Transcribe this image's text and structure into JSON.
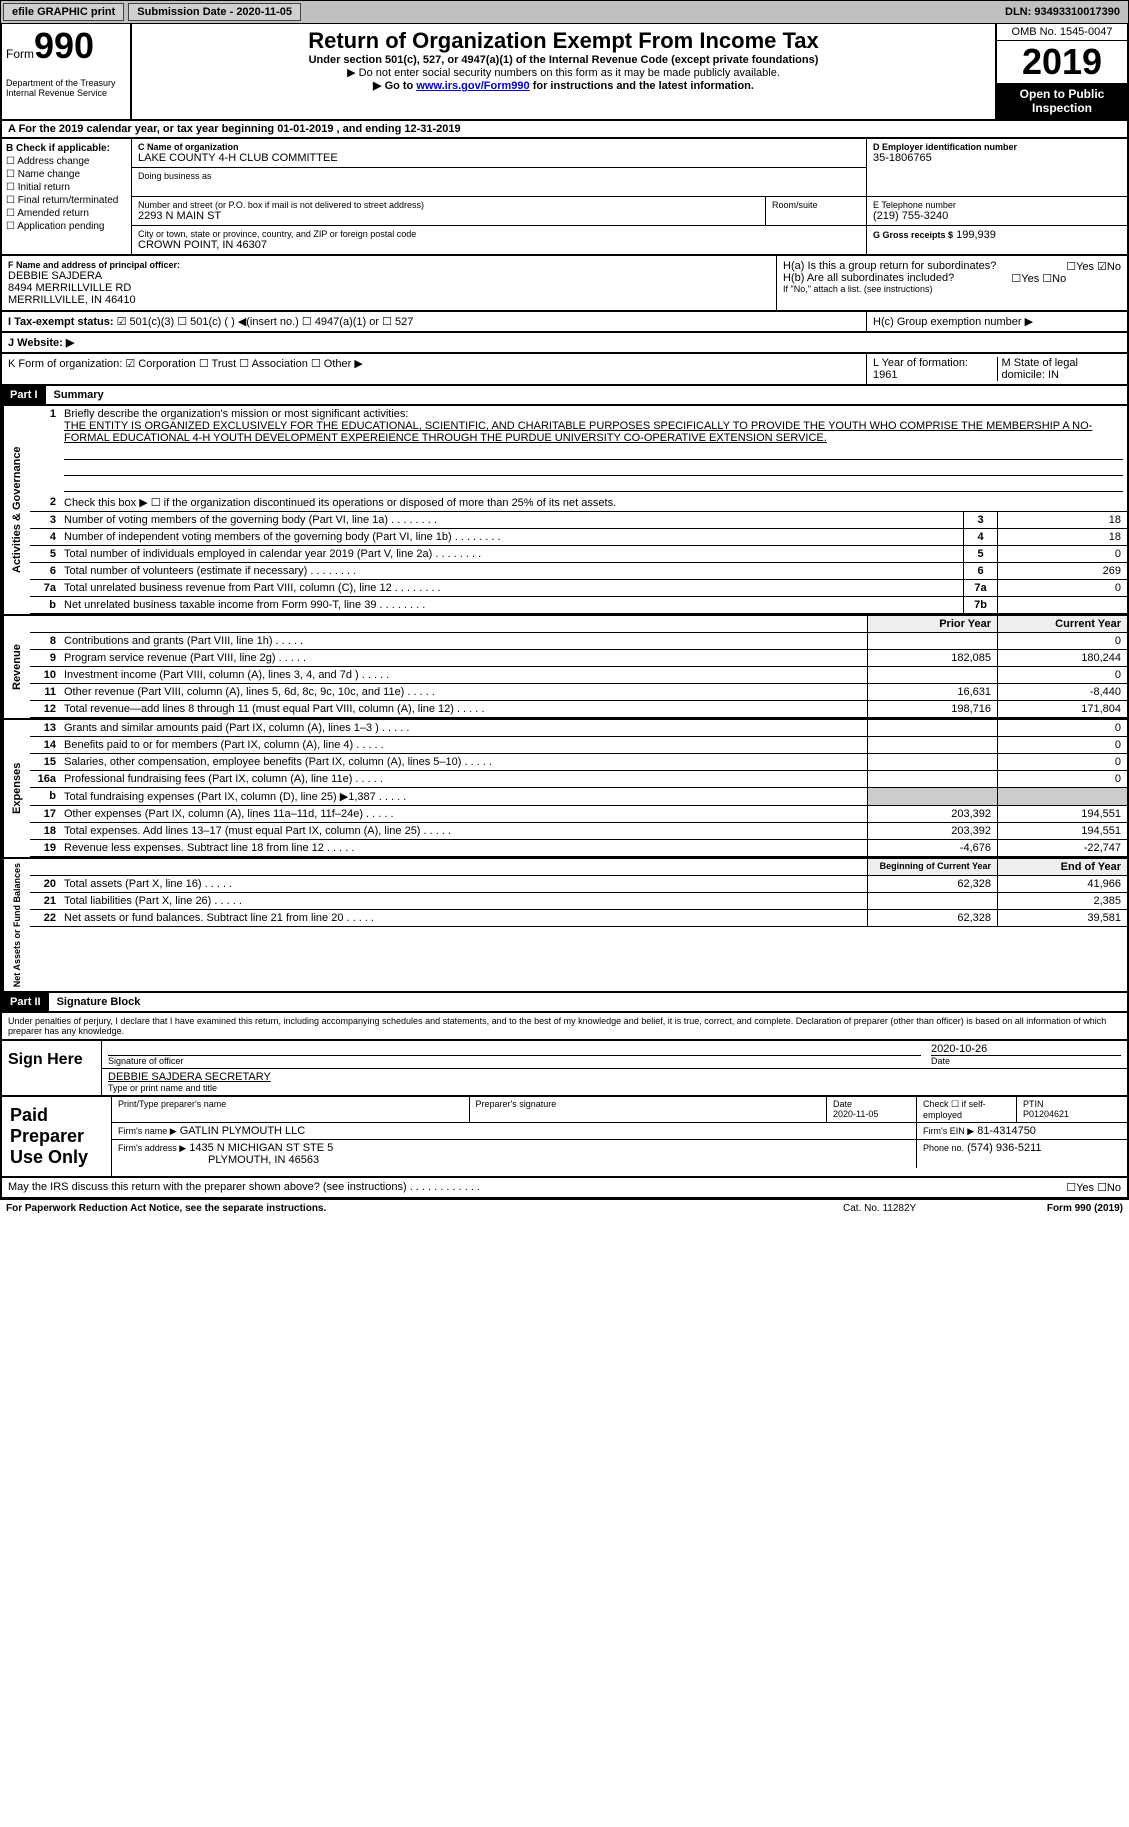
{
  "top": {
    "efile": "efile GRAPHIC print",
    "submission": "Submission Date - 2020-11-05",
    "dln": "DLN: 93493310017390"
  },
  "header": {
    "form_word": "Form",
    "form_no": "990",
    "title": "Return of Organization Exempt From Income Tax",
    "subtitle": "Under section 501(c), 527, or 4947(a)(1) of the Internal Revenue Code (except private foundations)",
    "note1": "▶ Do not enter social security numbers on this form as it may be made publicly available.",
    "note2_pre": "▶ Go to ",
    "note2_link": "www.irs.gov/Form990",
    "note2_post": " for instructions and the latest information.",
    "omb": "OMB No. 1545-0047",
    "year": "2019",
    "open": "Open to Public Inspection",
    "dept": "Department of the Treasury\nInternal Revenue Service"
  },
  "a_line": "A For the 2019 calendar year, or tax year beginning 01-01-2019   , and ending 12-31-2019",
  "b": {
    "label": "B Check if applicable:",
    "opts": [
      "☐ Address change",
      "☐ Name change",
      "☐ Initial return",
      "☐ Final return/terminated",
      "☐ Amended return",
      "☐ Application pending"
    ]
  },
  "c": {
    "label": "C Name of organization",
    "name": "LAKE COUNTY 4-H CLUB COMMITTEE",
    "dba_label": "Doing business as",
    "addr_label": "Number and street (or P.O. box if mail is not delivered to street address)",
    "addr": "2293 N MAIN ST",
    "room_label": "Room/suite",
    "city_label": "City or town, state or province, country, and ZIP or foreign postal code",
    "city": "CROWN POINT, IN  46307"
  },
  "d": {
    "label": "D Employer identification number",
    "val": "35-1806765"
  },
  "e": {
    "label": "E Telephone number",
    "val": "(219) 755-3240"
  },
  "g": {
    "label": "G Gross receipts $",
    "val": "199,939"
  },
  "f": {
    "label": "F Name and address of principal officer:",
    "name": "DEBBIE SAJDERA",
    "addr1": "8494 MERRILLVILLE RD",
    "addr2": "MERRILLVILLE, IN  46410"
  },
  "h": {
    "a": "H(a)  Is this a group return for subordinates?",
    "a_ans": "☐Yes ☑No",
    "b": "H(b)  Are all subordinates included?",
    "b_ans": "☐Yes ☐No",
    "b_note": "If \"No,\" attach a list. (see instructions)",
    "c": "H(c)  Group exemption number ▶"
  },
  "i": {
    "label": "I   Tax-exempt status:",
    "opts": "☑ 501(c)(3)   ☐ 501(c) (  ) ◀(insert no.)   ☐ 4947(a)(1) or   ☐ 527"
  },
  "j": "J   Website: ▶",
  "k": "K Form of organization:  ☑ Corporation  ☐ Trust  ☐ Association  ☐ Other ▶",
  "l": "L Year of formation: 1961",
  "m": "M State of legal domicile: IN",
  "part1": {
    "header": "Part I",
    "title": "Summary"
  },
  "summary": {
    "l1": "Briefly describe the organization's mission or most significant activities:",
    "mission": "THE ENTITY IS ORGANIZED EXCLUSIVELY FOR THE EDUCATIONAL, SCIENTIFIC, AND CHARITABLE PURPOSES SPECIFICALLY TO PROVIDE THE YOUTH WHO COMPRISE THE MEMBERSHIP A NO-FORMAL EDUCATIONAL 4-H YOUTH DEVELOPMENT EXPEREIENCE THROUGH THE PURDUE UNIVERSITY CO-OPERATIVE EXTENSION SERVICE.",
    "l2": "Check this box ▶ ☐ if the organization discontinued its operations or disposed of more than 25% of its net assets.",
    "rows_gov": [
      {
        "n": "3",
        "t": "Number of voting members of the governing body (Part VI, line 1a)",
        "box": "3",
        "v": "18"
      },
      {
        "n": "4",
        "t": "Number of independent voting members of the governing body (Part VI, line 1b)",
        "box": "4",
        "v": "18"
      },
      {
        "n": "5",
        "t": "Total number of individuals employed in calendar year 2019 (Part V, line 2a)",
        "box": "5",
        "v": "0"
      },
      {
        "n": "6",
        "t": "Total number of volunteers (estimate if necessary)",
        "box": "6",
        "v": "269"
      },
      {
        "n": "7a",
        "t": "Total unrelated business revenue from Part VIII, column (C), line 12",
        "box": "7a",
        "v": "0"
      },
      {
        "n": "b",
        "t": "Net unrelated business taxable income from Form 990-T, line 39",
        "box": "7b",
        "v": ""
      }
    ],
    "hdr_prior": "Prior Year",
    "hdr_curr": "Current Year",
    "revenue": [
      {
        "n": "8",
        "t": "Contributions and grants (Part VIII, line 1h)",
        "p": "",
        "c": "0"
      },
      {
        "n": "9",
        "t": "Program service revenue (Part VIII, line 2g)",
        "p": "182,085",
        "c": "180,244"
      },
      {
        "n": "10",
        "t": "Investment income (Part VIII, column (A), lines 3, 4, and 7d )",
        "p": "",
        "c": "0"
      },
      {
        "n": "11",
        "t": "Other revenue (Part VIII, column (A), lines 5, 6d, 8c, 9c, 10c, and 11e)",
        "p": "16,631",
        "c": "-8,440"
      },
      {
        "n": "12",
        "t": "Total revenue—add lines 8 through 11 (must equal Part VIII, column (A), line 12)",
        "p": "198,716",
        "c": "171,804"
      }
    ],
    "expenses": [
      {
        "n": "13",
        "t": "Grants and similar amounts paid (Part IX, column (A), lines 1–3 )",
        "p": "",
        "c": "0"
      },
      {
        "n": "14",
        "t": "Benefits paid to or for members (Part IX, column (A), line 4)",
        "p": "",
        "c": "0"
      },
      {
        "n": "15",
        "t": "Salaries, other compensation, employee benefits (Part IX, column (A), lines 5–10)",
        "p": "",
        "c": "0"
      },
      {
        "n": "16a",
        "t": "Professional fundraising fees (Part IX, column (A), line 11e)",
        "p": "",
        "c": "0"
      },
      {
        "n": "b",
        "t": "Total fundraising expenses (Part IX, column (D), line 25) ▶1,387",
        "p": "shade",
        "c": "shade"
      },
      {
        "n": "17",
        "t": "Other expenses (Part IX, column (A), lines 11a–11d, 11f–24e)",
        "p": "203,392",
        "c": "194,551"
      },
      {
        "n": "18",
        "t": "Total expenses. Add lines 13–17 (must equal Part IX, column (A), line 25)",
        "p": "203,392",
        "c": "194,551"
      },
      {
        "n": "19",
        "t": "Revenue less expenses. Subtract line 18 from line 12",
        "p": "-4,676",
        "c": "-22,747"
      }
    ],
    "hdr_beg": "Beginning of Current Year",
    "hdr_end": "End of Year",
    "netassets": [
      {
        "n": "20",
        "t": "Total assets (Part X, line 16)",
        "p": "62,328",
        "c": "41,966"
      },
      {
        "n": "21",
        "t": "Total liabilities (Part X, line 26)",
        "p": "",
        "c": "2,385"
      },
      {
        "n": "22",
        "t": "Net assets or fund balances. Subtract line 21 from line 20",
        "p": "62,328",
        "c": "39,581"
      }
    ]
  },
  "part2": {
    "header": "Part II",
    "title": "Signature Block"
  },
  "sig": {
    "declare": "Under penalties of perjury, I declare that I have examined this return, including accompanying schedules and statements, and to the best of my knowledge and belief, it is true, correct, and complete. Declaration of preparer (other than officer) is based on all information of which preparer has any knowledge.",
    "sign_here": "Sign Here",
    "sig_officer": "Signature of officer",
    "date": "2020-10-26",
    "date_label": "Date",
    "officer_name": "DEBBIE SAJDERA SECRETARY",
    "name_label": "Type or print name and title"
  },
  "prep": {
    "label": "Paid Preparer Use Only",
    "h_name": "Print/Type preparer's name",
    "h_sig": "Preparer's signature",
    "h_date": "Date",
    "date": "2020-11-05",
    "h_check": "Check ☐ if self-employed",
    "h_ptin": "PTIN",
    "ptin": "P01204621",
    "firm_label": "Firm's name    ▶",
    "firm": "GATLIN PLYMOUTH LLC",
    "ein_label": "Firm's EIN ▶",
    "ein": "81-4314750",
    "addr_label": "Firm's address ▶",
    "addr1": "1435 N MICHIGAN ST STE 5",
    "addr2": "PLYMOUTH, IN  46563",
    "phone_label": "Phone no.",
    "phone": "(574) 936-5211"
  },
  "irs_discuss": "May the IRS discuss this return with the preparer shown above? (see instructions)",
  "irs_ans": "☐Yes ☐No",
  "footer": {
    "left": "For Paperwork Reduction Act Notice, see the separate instructions.",
    "mid": "Cat. No. 11282Y",
    "right": "Form 990 (2019)"
  }
}
